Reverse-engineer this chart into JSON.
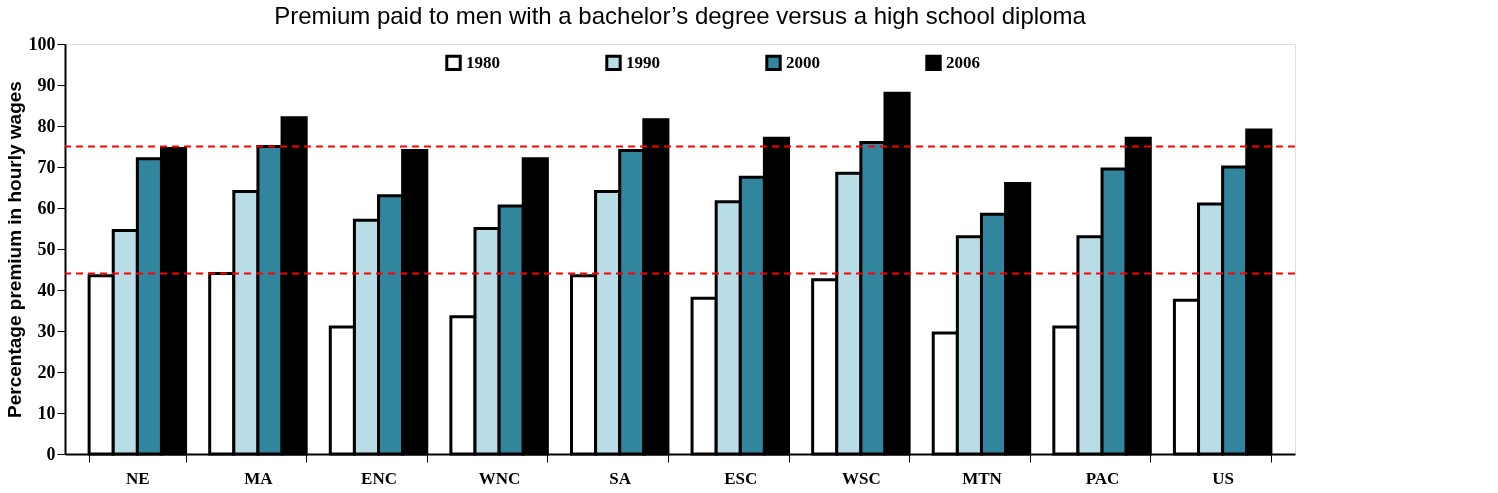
{
  "chart_data": {
    "type": "bar",
    "title": "Premium paid to men with a bachelor’s degree versus a high school diploma",
    "ylabel": "Percentage premium in hourly wages",
    "categories": [
      "NE",
      "MA",
      "ENC",
      "WNC",
      "SA",
      "ESC",
      "WSC",
      "MTN",
      "PAC",
      "US"
    ],
    "series": [
      {
        "name": "1980",
        "color": "#ffffff",
        "values": [
          43.5,
          44,
          31,
          33.5,
          43.5,
          38,
          42.5,
          29.5,
          31,
          37.5
        ]
      },
      {
        "name": "1990",
        "color": "#b8dde7",
        "values": [
          54.5,
          64,
          57,
          55,
          64,
          61.5,
          68.5,
          53,
          53,
          61
        ]
      },
      {
        "name": "2000",
        "color": "#31859c",
        "values": [
          72,
          75,
          63,
          60.5,
          74,
          67.5,
          76,
          58.5,
          69.5,
          70
        ]
      },
      {
        "name": "2006",
        "color": "#000000",
        "values": [
          74.5,
          82,
          74,
          72,
          81.5,
          77,
          88,
          66,
          77,
          79
        ]
      }
    ],
    "ylim": [
      0,
      100
    ],
    "yticks": [
      0,
      10,
      20,
      30,
      40,
      50,
      60,
      70,
      80,
      90,
      100
    ],
    "grid": false,
    "legend": "top",
    "ref_lines": [
      {
        "axis": "y",
        "value": 44,
        "color": "#ff0000",
        "line_style": "dashed"
      },
      {
        "axis": "y",
        "value": 75,
        "color": "#ff0000",
        "line_style": "dashed"
      }
    ]
  }
}
